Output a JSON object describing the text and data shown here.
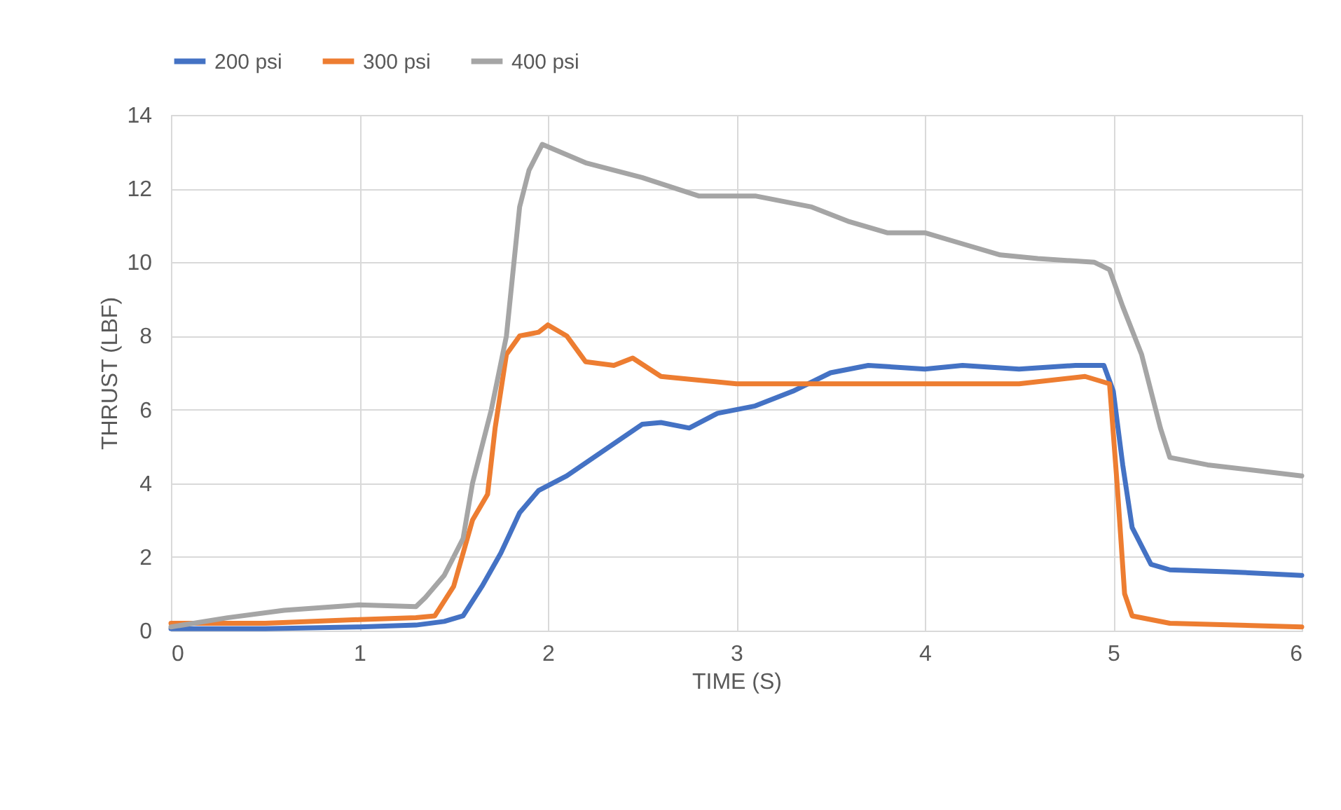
{
  "chart_data": {
    "type": "line",
    "xlabel": "TIME (S)",
    "ylabel": "THRUST (LBF)",
    "xlim": [
      0,
      6
    ],
    "xticks": [
      0,
      1,
      2,
      3,
      4,
      5,
      6
    ],
    "ylim": [
      0,
      14
    ],
    "yticks": [
      0,
      2,
      4,
      6,
      8,
      10,
      12,
      14
    ],
    "grid": true,
    "legend": "top",
    "marker": "none",
    "line_style": "solid",
    "series": [
      {
        "name": "200 psi",
        "color": "#4472c4",
        "x": [
          0,
          0.5,
          1,
          1.3,
          1.45,
          1.55,
          1.65,
          1.75,
          1.85,
          1.95,
          2.1,
          2.3,
          2.5,
          2.6,
          2.75,
          2.9,
          3.1,
          3.3,
          3.5,
          3.7,
          4.0,
          4.2,
          4.5,
          4.8,
          4.95,
          5.0,
          5.05,
          5.1,
          5.2,
          5.3,
          5.6,
          6.0
        ],
        "values": [
          0.05,
          0.05,
          0.1,
          0.15,
          0.25,
          0.4,
          1.2,
          2.1,
          3.2,
          3.8,
          4.2,
          4.9,
          5.6,
          5.65,
          5.5,
          5.9,
          6.1,
          6.5,
          7.0,
          7.2,
          7.1,
          7.2,
          7.1,
          7.2,
          7.2,
          6.5,
          4.5,
          2.8,
          1.8,
          1.65,
          1.6,
          1.5
        ]
      },
      {
        "name": "300 psi",
        "color": "#ed7d31",
        "x": [
          0,
          0.5,
          1.0,
          1.3,
          1.4,
          1.5,
          1.6,
          1.68,
          1.72,
          1.78,
          1.85,
          1.95,
          2.0,
          2.1,
          2.2,
          2.35,
          2.45,
          2.6,
          2.8,
          3.0,
          3.5,
          4.0,
          4.5,
          4.85,
          4.98,
          5.02,
          5.06,
          5.1,
          5.3,
          6.0
        ],
        "values": [
          0.2,
          0.2,
          0.3,
          0.35,
          0.4,
          1.2,
          3.0,
          3.7,
          5.5,
          7.5,
          8.0,
          8.1,
          8.3,
          8.0,
          7.3,
          7.2,
          7.4,
          6.9,
          6.8,
          6.7,
          6.7,
          6.7,
          6.7,
          6.9,
          6.7,
          4.0,
          1.0,
          0.4,
          0.2,
          0.1
        ]
      },
      {
        "name": "400 psi",
        "color": "#a5a5a5",
        "x": [
          0,
          0.3,
          0.6,
          1.0,
          1.3,
          1.35,
          1.45,
          1.55,
          1.6,
          1.7,
          1.78,
          1.85,
          1.9,
          1.97,
          2.2,
          2.5,
          2.8,
          3.1,
          3.4,
          3.6,
          3.8,
          4.0,
          4.2,
          4.4,
          4.6,
          4.9,
          4.98,
          5.05,
          5.15,
          5.25,
          5.3,
          5.5,
          6.0
        ],
        "values": [
          0.1,
          0.35,
          0.55,
          0.7,
          0.65,
          0.9,
          1.5,
          2.5,
          4.0,
          6.0,
          8.0,
          11.5,
          12.5,
          13.2,
          12.7,
          12.3,
          11.8,
          11.8,
          11.5,
          11.1,
          10.8,
          10.8,
          10.5,
          10.2,
          10.1,
          10.0,
          9.8,
          8.8,
          7.5,
          5.5,
          4.7,
          4.5,
          4.2
        ]
      }
    ]
  }
}
